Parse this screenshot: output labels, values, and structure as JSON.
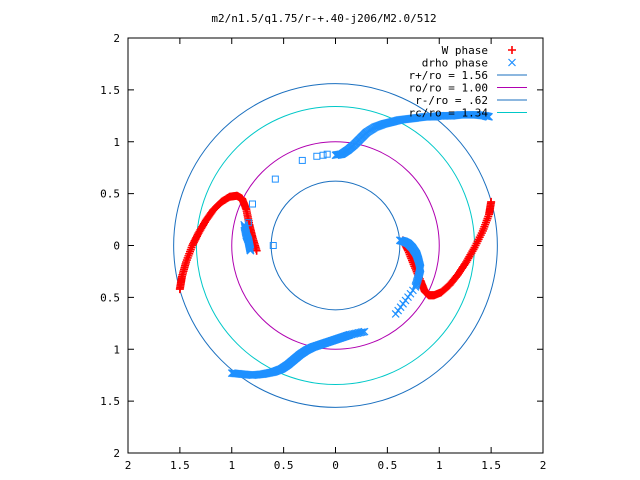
{
  "chart_data": {
    "type": "scatter",
    "title": "m2/n1.5/q1.75/r-+.40-j206/M2.0/512",
    "xlim": [
      -2,
      2
    ],
    "ylim": [
      -2,
      2
    ],
    "x_tick_values": [
      -2,
      -1.5,
      -1,
      -0.5,
      0,
      0.5,
      1,
      1.5,
      2
    ],
    "x_tick_labels": [
      "2",
      "1.5",
      "1",
      "0.5",
      "0",
      "0.5",
      "1",
      "1.5",
      "2"
    ],
    "y_tick_values": [
      -2,
      -1.5,
      -1,
      -0.5,
      0,
      0.5,
      1,
      1.5,
      2
    ],
    "y_tick_labels": [
      "2",
      "1.5",
      "1",
      "0.5",
      "0",
      "0.5",
      "1",
      "1.5",
      "2"
    ],
    "grid": false,
    "legend_position": "top-right",
    "series": [
      {
        "name": "W phase",
        "marker": "plus",
        "color": "#ff0000",
        "arms": [
          {
            "x": [
              -1.5,
              -1.48,
              -1.44,
              -1.38,
              -1.32,
              -1.25,
              -1.18,
              -1.1,
              -1.02,
              -0.95,
              -0.9,
              -0.86,
              -0.83,
              -0.8,
              -0.76
            ],
            "y": [
              -0.42,
              -0.3,
              -0.16,
              0.0,
              0.12,
              0.24,
              0.34,
              0.42,
              0.47,
              0.48,
              0.45,
              0.35,
              0.2,
              0.08,
              -0.05
            ]
          },
          {
            "x": [
              0.65,
              0.7,
              0.76,
              0.82,
              0.86,
              0.9,
              0.95,
              1.02,
              1.1,
              1.18,
              1.26,
              1.34,
              1.42,
              1.48,
              1.5
            ],
            "y": [
              0.05,
              -0.05,
              -0.2,
              -0.34,
              -0.44,
              -0.48,
              -0.48,
              -0.45,
              -0.38,
              -0.28,
              -0.16,
              -0.02,
              0.14,
              0.3,
              0.42
            ]
          }
        ]
      },
      {
        "name": "drho phase",
        "marker": "cross",
        "color": "#1e90ff",
        "arms": [
          {
            "x": [
              -1.0,
              -0.9,
              -0.8,
              -0.7,
              -0.6,
              -0.52,
              -0.46,
              -0.4,
              -0.34,
              -0.28,
              -0.22,
              -0.16,
              -0.1,
              -0.04,
              0.02,
              0.08,
              0.14,
              0.28
            ],
            "y": [
              -1.23,
              -1.24,
              -1.25,
              -1.24,
              -1.22,
              -1.19,
              -1.15,
              -1.1,
              -1.05,
              -1.01,
              -0.98,
              -0.96,
              -0.94,
              -0.92,
              -0.9,
              -0.88,
              -0.86,
              -0.83
            ]
          },
          {
            "x": [
              0.0,
              0.06,
              0.12,
              0.18,
              0.24,
              0.3,
              0.38,
              0.46,
              0.54,
              0.62,
              0.7,
              0.78,
              0.86,
              0.94,
              1.0,
              1.06,
              1.12,
              1.2,
              1.28,
              1.36,
              1.44,
              1.48
            ],
            "y": [
              0.87,
              0.88,
              0.92,
              0.97,
              1.03,
              1.09,
              1.14,
              1.17,
              1.19,
              1.21,
              1.22,
              1.23,
              1.24,
              1.24,
              1.25,
              1.25,
              1.25,
              1.26,
              1.26,
              1.26,
              1.25,
              1.24
            ]
          },
          {
            "x": [
              0.62,
              0.66,
              0.7,
              0.74,
              0.78,
              0.8,
              0.82,
              0.8,
              0.77,
              0.58
            ],
            "y": [
              0.05,
              0.04,
              0.02,
              -0.02,
              -0.08,
              -0.14,
              -0.22,
              -0.3,
              -0.4,
              -0.66
            ]
          },
          {
            "x": [
              -0.88,
              -0.86,
              -0.84,
              -0.83,
              -0.82
            ],
            "y": [
              0.2,
              0.1,
              0.05,
              0.0,
              -0.05
            ]
          }
        ],
        "open_squares": {
          "x": [
            -0.58,
            -0.8,
            -0.84,
            -0.86,
            -0.6,
            -0.32,
            -0.18,
            -0.12,
            -0.08
          ],
          "y": [
            0.64,
            0.4,
            0.22,
            0.12,
            0.0,
            0.82,
            0.86,
            0.87,
            0.88
          ]
        }
      },
      {
        "name": "r+/ro = 1.56",
        "type": "circle",
        "radius": 1.56,
        "color": "#1a6fbf"
      },
      {
        "name": "ro/ro = 1.00",
        "type": "circle",
        "radius": 1.0,
        "color": "#b000b0"
      },
      {
        "name": "r-/ro = .62",
        "type": "circle",
        "radius": 0.62,
        "color": "#1a6fbf"
      },
      {
        "name": "rc/ro = 1.34",
        "type": "circle",
        "radius": 1.34,
        "color": "#00c8c8"
      }
    ]
  }
}
